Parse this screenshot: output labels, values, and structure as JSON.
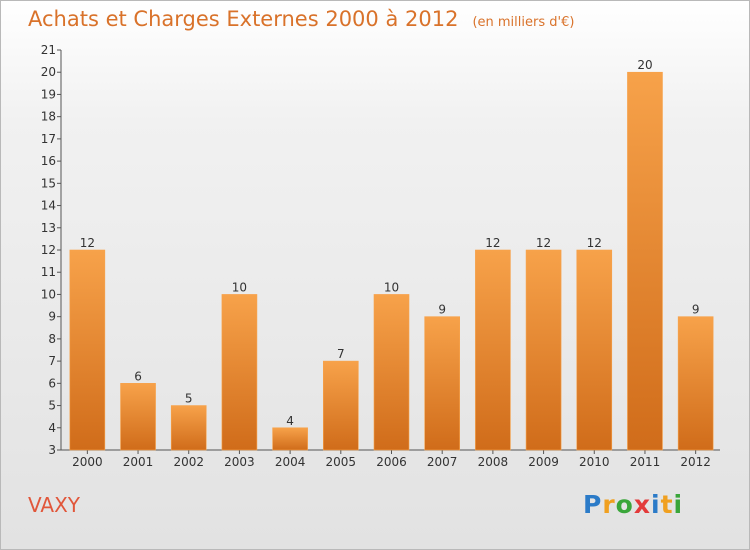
{
  "header": {
    "title": "Achats et Charges Externes 2000 à 2012",
    "unit": "(en milliers d'€)"
  },
  "commune": "VAXY",
  "logo": {
    "text": "Proxiti",
    "letters": [
      {
        "ch": "P",
        "color": "#2b7bc8"
      },
      {
        "ch": "r",
        "color": "#f0a020"
      },
      {
        "ch": "o",
        "color": "#3aa63a"
      },
      {
        "ch": "x",
        "color": "#e33a3a"
      },
      {
        "ch": "i",
        "color": "#2b7bc8"
      },
      {
        "ch": "t",
        "color": "#f0a020"
      },
      {
        "ch": "i",
        "color": "#3aa63a"
      }
    ]
  },
  "chart_data": {
    "type": "bar",
    "title": "Achats et Charges Externes 2000 à 2012",
    "subtitle": "(en milliers d'€)",
    "xlabel": "",
    "ylabel": "",
    "categories": [
      "2000",
      "2001",
      "2002",
      "2003",
      "2004",
      "2005",
      "2006",
      "2007",
      "2008",
      "2009",
      "2010",
      "2011",
      "2012"
    ],
    "values": [
      12,
      6,
      5,
      10,
      4,
      7,
      10,
      9,
      12,
      12,
      12,
      20,
      9
    ],
    "ylim": [
      3,
      21
    ],
    "yticks": [
      3,
      4,
      5,
      6,
      7,
      8,
      9,
      10,
      11,
      12,
      13,
      14,
      15,
      16,
      17,
      18,
      19,
      20,
      21
    ],
    "grid": false,
    "legend": "none",
    "bar_color": "#f2963f",
    "bar_color_dark": "#d06c1a",
    "text_color": "#d9722a"
  }
}
